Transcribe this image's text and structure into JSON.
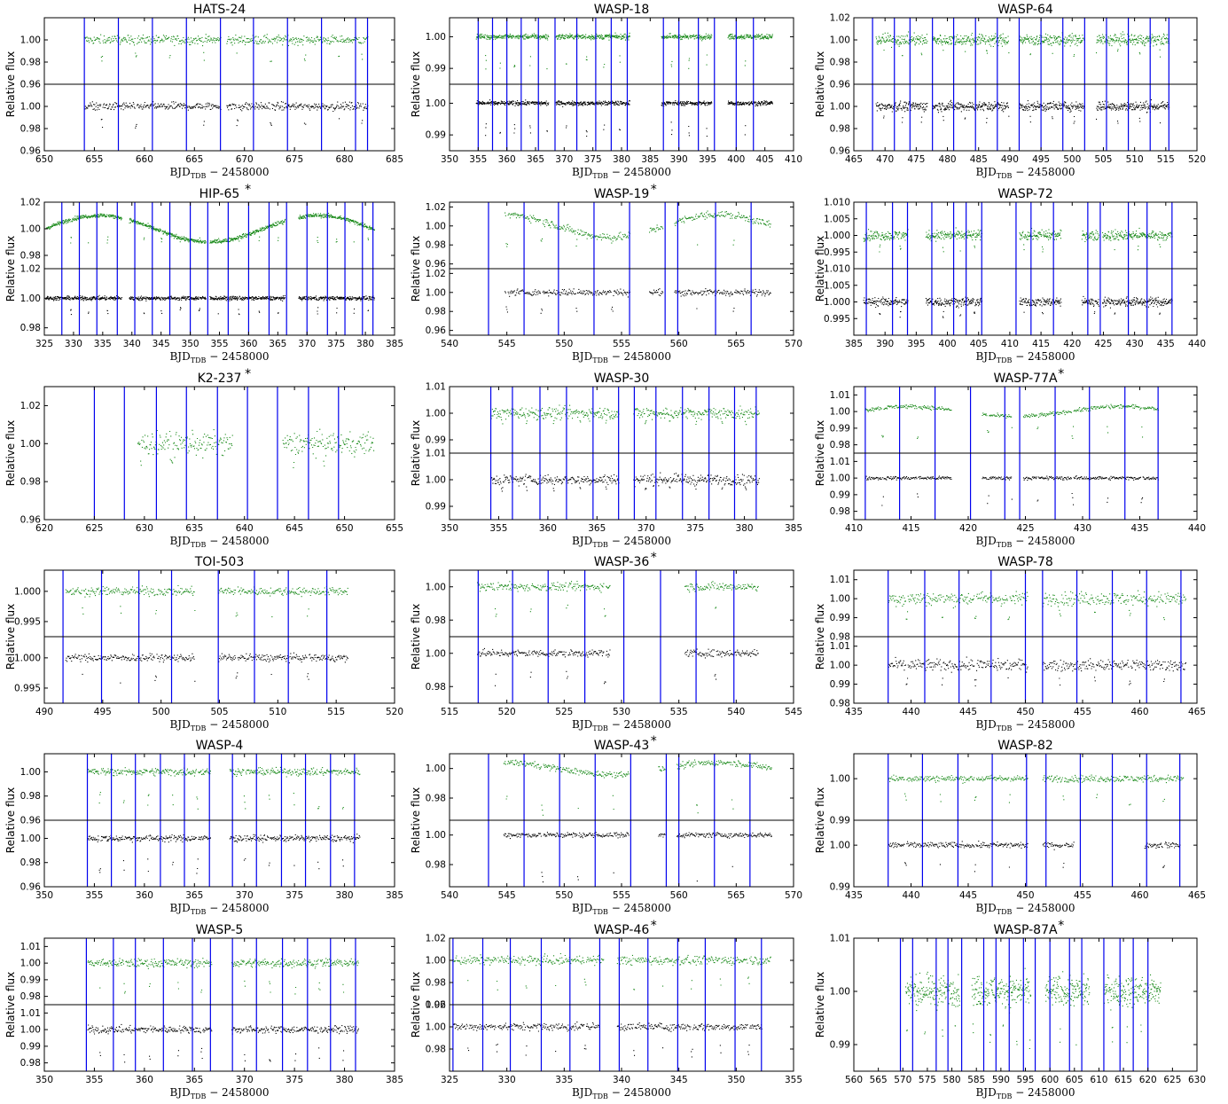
{
  "x_label": {
    "main": "BJD",
    "sub": "TDB",
    "rest": " − 2458000"
  },
  "y_label": "Relative flux",
  "star_mark": "*",
  "colors": {
    "top_series": "#1a8a1a",
    "bottom_series": "#000000",
    "transit_line": "#0000ee"
  },
  "chart_data": [
    {
      "type": "scatter",
      "title": "HATS-24",
      "star": false,
      "xlim": [
        650,
        685
      ],
      "xticks": [
        650,
        655,
        660,
        665,
        670,
        675,
        680,
        685
      ],
      "top": {
        "ylim": [
          0.96,
          1.02
        ],
        "yticks": [
          "0.96",
          "0.98",
          "1.00"
        ]
      },
      "bottom": {
        "ylim": [
          0.96,
          1.02
        ],
        "yticks": [
          "0.96",
          "0.98",
          "1.00"
        ]
      },
      "segments": [
        [
          654.0,
          667.6
        ],
        [
          668.2,
          682.3
        ]
      ],
      "lines": [
        654.0,
        657.4,
        660.8,
        664.2,
        667.6,
        670.9,
        674.3,
        677.7,
        681.1,
        682.3
      ],
      "depth": 0.018,
      "noise": 0.004
    },
    {
      "type": "scatter",
      "title": "WASP-18",
      "star": false,
      "xlim": [
        350,
        410
      ],
      "xticks": [
        350,
        355,
        360,
        365,
        370,
        375,
        380,
        385,
        390,
        395,
        400,
        405,
        410
      ],
      "top": {
        "ylim": [
          0.985,
          1.006
        ],
        "yticks": [
          "0.99",
          "1.00"
        ]
      },
      "bottom": {
        "ylim": [
          0.985,
          1.006
        ],
        "yticks": [
          "0.99",
          "1.00"
        ]
      },
      "segments": [
        [
          354.6,
          367.2
        ],
        [
          368.5,
          381.4
        ],
        [
          386.9,
          395.7
        ],
        [
          398.5,
          406.3
        ]
      ],
      "lines": [
        355.0,
        357.5,
        360.0,
        362.5,
        365.5,
        368.4,
        372.2,
        375.5,
        378.2,
        381.0,
        387.3,
        390.0,
        393.4,
        396.2,
        400.0,
        403.0
      ],
      "depth": 0.0095,
      "noise": 0.0008
    },
    {
      "type": "scatter",
      "title": "WASP-64",
      "star": false,
      "xlim": [
        465,
        520
      ],
      "xticks": [
        465,
        470,
        475,
        480,
        485,
        490,
        495,
        500,
        505,
        510,
        515,
        520
      ],
      "top": {
        "ylim": [
          0.96,
          1.02
        ],
        "yticks": [
          "0.96",
          "0.98",
          "1.00",
          "1.02"
        ]
      },
      "bottom": {
        "ylim": [
          0.96,
          1.02
        ],
        "yticks": [
          "0.96",
          "0.98",
          "1.00"
        ]
      },
      "segments": [
        [
          468.5,
          476.7
        ],
        [
          477.5,
          489.8
        ],
        [
          491.5,
          501.8
        ],
        [
          503.8,
          515.5
        ]
      ],
      "lines": [
        468.0,
        471.5,
        474.0,
        477.6,
        481.0,
        484.5,
        488.0,
        491.5,
        495.0,
        498.5,
        502.0,
        505.5,
        509.0,
        512.5,
        515.5
      ],
      "depth": 0.014,
      "noise": 0.005
    },
    {
      "type": "scatter",
      "title": "HIP-65",
      "star": true,
      "xlim": [
        325,
        385
      ],
      "xticks": [
        325,
        330,
        335,
        340,
        345,
        350,
        355,
        360,
        365,
        370,
        375,
        380,
        385
      ],
      "top": {
        "ylim": [
          0.97,
          1.02
        ],
        "yticks": [
          "0.98",
          "1.00",
          "1.02"
        ]
      },
      "bottom": {
        "ylim": [
          0.975,
          1.02
        ],
        "yticks": [
          "0.98",
          "1.00",
          "1.02"
        ]
      },
      "segments": [
        [
          325.2,
          338.2
        ],
        [
          339.5,
          352.6
        ],
        [
          353.3,
          366.2
        ],
        [
          368.5,
          381.5
        ]
      ],
      "lines": [
        328.0,
        331.0,
        334.0,
        337.5,
        340.5,
        343.5,
        346.5,
        350.0,
        353.0,
        356.5,
        360.0,
        363.5,
        366.5,
        370.0,
        373.5,
        376.5,
        379.5,
        381.3
      ],
      "depth": 0.01,
      "noise": 0.0015,
      "trend": 0.01
    },
    {
      "type": "scatter",
      "title": "WASP-19",
      "star": true,
      "xlim": [
        540,
        570
      ],
      "xticks": [
        540,
        545,
        550,
        555,
        560,
        565,
        570
      ],
      "top": {
        "ylim": [
          0.955,
          1.025
        ],
        "yticks": [
          "0.96",
          "0.98",
          "1.00",
          "1.02"
        ]
      },
      "bottom": {
        "ylim": [
          0.955,
          1.025
        ],
        "yticks": [
          "0.96",
          "0.98",
          "1.00",
          "1.02"
        ]
      },
      "segments": [
        [
          544.8,
          555.7
        ],
        [
          557.4,
          558.6
        ],
        [
          559.6,
          568.0
        ]
      ],
      "lines": [
        543.4,
        546.5,
        549.5,
        552.6,
        555.7,
        558.8,
        559.9,
        563.2,
        566.3
      ],
      "depth": 0.02,
      "noise": 0.004,
      "trend": 0.012
    },
    {
      "type": "scatter",
      "title": "WASP-72",
      "star": false,
      "xlim": [
        385,
        440
      ],
      "xticks": [
        385,
        390,
        395,
        400,
        405,
        410,
        415,
        420,
        425,
        430,
        435,
        440
      ],
      "top": {
        "ylim": [
          0.99,
          1.01
        ],
        "yticks": [
          "0.995",
          "1.000",
          "1.005",
          "1.010"
        ]
      },
      "bottom": {
        "ylim": [
          0.99,
          1.01
        ],
        "yticks": [
          "0.995",
          "1.000",
          "1.005",
          "1.010"
        ]
      },
      "segments": [
        [
          386.5,
          393.6
        ],
        [
          396.5,
          405.5
        ],
        [
          411.5,
          418.2
        ],
        [
          421.5,
          424.2
        ],
        [
          424.8,
          436.0
        ]
      ],
      "lines": [
        387.0,
        391.2,
        393.6,
        397.5,
        401.0,
        403.0,
        405.5,
        411.0,
        413.4,
        417.0,
        422.5,
        424.5,
        429.0,
        432.0,
        436.0
      ],
      "depth": 0.0045,
      "noise": 0.0015
    },
    {
      "type": "scatter",
      "title": "K2-237",
      "star": true,
      "single": true,
      "xlim": [
        620,
        655
      ],
      "xticks": [
        620,
        625,
        630,
        635,
        640,
        645,
        650,
        655
      ],
      "top": {
        "ylim": [
          0.96,
          1.03
        ],
        "yticks": [
          "0.96",
          "0.98",
          "1.00",
          "1.02"
        ]
      },
      "segments": [
        [
          629.3,
          638.8
        ],
        [
          643.8,
          652.9
        ]
      ],
      "lines": [
        625.0,
        628.0,
        631.2,
        634.2,
        637.3,
        640.3,
        643.3,
        646.4,
        649.4
      ],
      "depth": 0.012,
      "noise": 0.0055
    },
    {
      "type": "scatter",
      "title": "WASP-30",
      "star": false,
      "xlim": [
        350,
        385
      ],
      "xticks": [
        350,
        355,
        360,
        365,
        370,
        375,
        380,
        385
      ],
      "top": {
        "ylim": [
          0.985,
          1.01
        ],
        "yticks": [
          "0.99",
          "1.00",
          "1.01"
        ]
      },
      "bottom": {
        "ylim": [
          0.985,
          1.01
        ],
        "yticks": [
          "0.99",
          "1.00",
          "1.01"
        ]
      },
      "segments": [
        [
          354.2,
          367.2
        ],
        [
          368.7,
          381.5
        ]
      ],
      "lines": [
        354.2,
        356.4,
        359.2,
        361.9,
        364.6,
        367.2,
        368.8,
        371.0,
        373.7,
        376.4,
        379.0,
        381.2
      ],
      "depth": 0.004,
      "noise": 0.0022
    },
    {
      "type": "scatter",
      "title": "WASP-77A",
      "star": true,
      "xlim": [
        410,
        440
      ],
      "xticks": [
        410,
        415,
        420,
        425,
        430,
        435,
        440
      ],
      "top": {
        "ylim": [
          0.975,
          1.015
        ],
        "yticks": [
          "0.98",
          "0.99",
          "1.00",
          "1.01"
        ]
      },
      "bottom": {
        "ylim": [
          0.975,
          1.015
        ],
        "yticks": [
          "0.98",
          "0.99",
          "1.00",
          "1.01"
        ]
      },
      "segments": [
        [
          411.0,
          418.5
        ],
        [
          421.2,
          423.8
        ],
        [
          424.8,
          436.6
        ]
      ],
      "lines": [
        411.0,
        414.0,
        417.1,
        420.2,
        423.2,
        424.5,
        427.6,
        430.6,
        433.7,
        436.6
      ],
      "depth": 0.015,
      "noise": 0.0012,
      "trend": 0.003
    },
    {
      "type": "scatter",
      "title": "TOI-503",
      "star": false,
      "xlim": [
        490,
        520
      ],
      "xticks": [
        490,
        495,
        500,
        505,
        510,
        515,
        520
      ],
      "top": {
        "ylim": [
          0.9925,
          1.0035
        ],
        "yticks": [
          "0.995",
          "1.000"
        ]
      },
      "bottom": {
        "ylim": [
          0.9925,
          1.0035
        ],
        "yticks": [
          "0.995",
          "1.000"
        ]
      },
      "segments": [
        [
          491.8,
          502.9
        ],
        [
          504.9,
          516.0
        ]
      ],
      "lines": [
        491.6,
        494.9,
        498.1,
        500.9,
        504.9,
        508.0,
        510.9,
        514.2
      ],
      "depth": 0.004,
      "noise": 0.0007
    },
    {
      "type": "scatter",
      "title": "WASP-36",
      "star": true,
      "xlim": [
        515,
        545
      ],
      "xticks": [
        515,
        520,
        525,
        530,
        535,
        540,
        545
      ],
      "top": {
        "ylim": [
          0.97,
          1.01
        ],
        "yticks": [
          "0.98",
          "1.00"
        ]
      },
      "bottom": {
        "ylim": [
          0.97,
          1.01
        ],
        "yticks": [
          "0.98",
          "1.00"
        ]
      },
      "segments": [
        [
          517.4,
          529.0
        ],
        [
          535.5,
          541.9
        ]
      ],
      "lines": [
        517.5,
        520.5,
        523.6,
        526.8,
        530.2,
        533.4,
        536.5,
        539.8
      ],
      "depth": 0.018,
      "noise": 0.0025
    },
    {
      "type": "scatter",
      "title": "WASP-78",
      "star": false,
      "xlim": [
        435,
        465
      ],
      "xticks": [
        435,
        440,
        445,
        450,
        455,
        460,
        465
      ],
      "top": {
        "ylim": [
          0.98,
          1.015
        ],
        "yticks": [
          "0.98",
          "0.99",
          "1.00",
          "1.01"
        ]
      },
      "bottom": {
        "ylim": [
          0.98,
          1.015
        ],
        "yticks": [
          "0.98",
          "0.99",
          "1.00",
          "1.01"
        ]
      },
      "segments": [
        [
          438.0,
          450.2
        ],
        [
          451.5,
          464.0
        ]
      ],
      "lines": [
        438.0,
        441.2,
        444.2,
        447.0,
        450.0,
        451.5,
        454.5,
        457.6,
        460.6,
        463.6
      ],
      "depth": 0.01,
      "noise": 0.0035
    },
    {
      "type": "scatter",
      "title": "WASP-4",
      "star": false,
      "xlim": [
        350,
        385
      ],
      "xticks": [
        350,
        355,
        360,
        365,
        370,
        375,
        380,
        385
      ],
      "top": {
        "ylim": [
          0.96,
          1.015
        ],
        "yticks": [
          "0.96",
          "0.98",
          "1.00"
        ]
      },
      "bottom": {
        "ylim": [
          0.96,
          1.015
        ],
        "yticks": [
          "0.96",
          "0.98",
          "1.00"
        ]
      },
      "segments": [
        [
          354.3,
          366.6
        ],
        [
          368.5,
          381.5
        ]
      ],
      "lines": [
        354.3,
        356.7,
        359.1,
        361.6,
        364.0,
        366.5,
        368.8,
        371.2,
        373.7,
        376.1,
        378.6,
        381.0
      ],
      "depth": 0.028,
      "noise": 0.003
    },
    {
      "type": "scatter",
      "title": "WASP-43",
      "star": true,
      "xlim": [
        540,
        570
      ],
      "xticks": [
        540,
        545,
        550,
        555,
        560,
        565,
        570
      ],
      "top": {
        "ylim": [
          0.965,
          1.01
        ],
        "yticks": [
          "0.98",
          "1.00"
        ]
      },
      "bottom": {
        "ylim": [
          0.965,
          1.01
        ],
        "yticks": [
          "0.98",
          "1.00"
        ]
      },
      "segments": [
        [
          544.7,
          555.6
        ],
        [
          558.2,
          558.8
        ],
        [
          559.8,
          568.1
        ]
      ],
      "lines": [
        543.4,
        546.5,
        549.6,
        552.7,
        555.8,
        558.9,
        560.0,
        563.1,
        566.2
      ],
      "depth": 0.03,
      "noise": 0.002,
      "trend": 0.004
    },
    {
      "type": "scatter",
      "title": "WASP-82",
      "star": false,
      "xlim": [
        435,
        465
      ],
      "xticks": [
        435,
        440,
        445,
        450,
        455,
        460,
        465
      ],
      "top": {
        "ylim": [
          0.99,
          1.006
        ],
        "yticks": [
          "0.99",
          "1.00"
        ]
      },
      "bottom": {
        "ylim": [
          0.99,
          1.006
        ],
        "yticks": [
          "0.99",
          "1.00"
        ]
      },
      "segments": [
        [
          438.0,
          450.2
        ],
        [
          451.5,
          463.8
        ]
      ],
      "bottom_segments": [
        [
          438.0,
          450.2
        ],
        [
          451.5,
          454.2
        ],
        [
          460.4,
          463.5
        ]
      ],
      "lines": [
        438.0,
        441.0,
        444.1,
        447.1,
        450.1,
        451.8,
        454.8,
        457.6,
        460.6,
        463.5
      ],
      "depth": 0.006,
      "noise": 0.0008
    },
    {
      "type": "scatter",
      "title": "WASP-5",
      "star": false,
      "xlim": [
        350,
        385
      ],
      "xticks": [
        350,
        355,
        360,
        365,
        370,
        375,
        380,
        385
      ],
      "top": {
        "ylim": [
          0.975,
          1.015
        ],
        "yticks": [
          "0.98",
          "0.99",
          "1.00",
          "1.01"
        ]
      },
      "bottom": {
        "ylim": [
          0.975,
          1.015
        ],
        "yticks": [
          "0.98",
          "0.99",
          "1.00",
          "1.01"
        ]
      },
      "segments": [
        [
          354.3,
          366.7
        ],
        [
          368.7,
          381.4
        ]
      ],
      "lines": [
        354.2,
        356.9,
        359.1,
        361.9,
        364.8,
        366.6,
        368.8,
        371.2,
        373.8,
        376.3,
        378.6,
        381.1
      ],
      "depth": 0.018,
      "noise": 0.0025
    },
    {
      "type": "scatter",
      "title": "WASP-46",
      "star": true,
      "xlim": [
        325,
        355
      ],
      "xticks": [
        325,
        330,
        335,
        340,
        345,
        350,
        355
      ],
      "top": {
        "ylim": [
          0.96,
          1.02
        ],
        "yticks": [
          "0.96",
          "0.98",
          "1.00",
          "1.02"
        ]
      },
      "bottom": {
        "ylim": [
          0.96,
          1.02
        ],
        "yticks": [
          "0.98",
          "1.00",
          "1.02"
        ]
      },
      "segments": [
        [
          325.3,
          338.4
        ],
        [
          339.6,
          353.0
        ]
      ],
      "bottom_segments": [
        [
          325.3,
          338.1
        ],
        [
          339.6,
          352.2
        ]
      ],
      "lines": [
        325.3,
        327.9,
        330.3,
        333.0,
        335.5,
        338.1,
        339.8,
        342.3,
        344.9,
        347.3,
        349.9,
        352.2
      ],
      "depth": 0.025,
      "noise": 0.004
    },
    {
      "type": "scatter",
      "title": "WASP-87A",
      "star": true,
      "single": true,
      "xlim": [
        560,
        630
      ],
      "xticks": [
        560,
        565,
        570,
        575,
        580,
        585,
        590,
        595,
        600,
        605,
        610,
        615,
        620,
        625,
        630
      ],
      "top": {
        "ylim": [
          0.985,
          1.01
        ],
        "yticks": [
          "0.99",
          "1.00",
          "1.01"
        ]
      },
      "segments": [
        [
          570.5,
          581.5
        ],
        [
          584.0,
          596.0
        ],
        [
          599.0,
          608.0
        ],
        [
          611.0,
          622.5
        ]
      ],
      "lines": [
        569.5,
        572.0,
        576.8,
        579.2,
        582.0,
        586.5,
        589.0,
        591.7,
        594.6,
        597.0,
        600.0,
        604.0,
        606.5,
        611.0,
        614.3,
        617.0,
        620.0
      ],
      "depth": 0.01,
      "noise": 0.0028
    }
  ]
}
